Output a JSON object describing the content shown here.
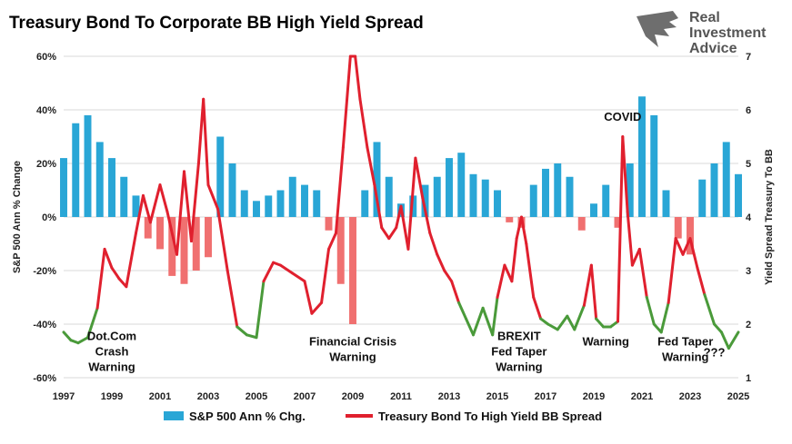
{
  "chart_data": {
    "type": "bar+line",
    "title": "Treasury Bond To Corporate BB High Yield Spread",
    "logo": {
      "lines": [
        "Real",
        "Investment",
        "Advice"
      ]
    },
    "ylabel_left": "S&P 500 Ann % Change",
    "ylabel_right": "Yield Spread Treasury To BB",
    "ylim_left": [
      -60,
      60
    ],
    "ylim_right": [
      1,
      7
    ],
    "yticks_left": [
      "60%",
      "40%",
      "20%",
      "0%",
      "-20%",
      "-40%",
      "-60%"
    ],
    "yticks_right": [
      "7",
      "6",
      "5",
      "4",
      "3",
      "2",
      "1"
    ],
    "xlim": [
      1997,
      2025
    ],
    "xticks": [
      "1997",
      "1999",
      "2001",
      "2003",
      "2005",
      "2007",
      "2009",
      "2011",
      "2013",
      "2015",
      "2017",
      "2019",
      "2021",
      "2023",
      "2025"
    ],
    "grid": "horizontal",
    "legend_position": "bottom",
    "colors": {
      "bars_pos": "#29a6d6",
      "bars_neg": "#f07070",
      "line_high": "#e0202e",
      "line_low": "#4a9a3a",
      "grid": "#d9d9d9"
    },
    "series": [
      {
        "name": "S&P 500 Ann % Chg.",
        "kind": "bar",
        "x": [
          1997.0,
          1997.5,
          1998.0,
          1998.5,
          1999.0,
          1999.5,
          2000.0,
          2000.5,
          2001.0,
          2001.5,
          2002.0,
          2002.5,
          2003.0,
          2003.5,
          2004.0,
          2004.5,
          2005.0,
          2005.5,
          2006.0,
          2006.5,
          2007.0,
          2007.5,
          2008.0,
          2008.5,
          2009.0,
          2009.5,
          2010.0,
          2010.5,
          2011.0,
          2011.5,
          2012.0,
          2012.5,
          2013.0,
          2013.5,
          2014.0,
          2014.5,
          2015.0,
          2015.5,
          2016.0,
          2016.5,
          2017.0,
          2017.5,
          2018.0,
          2018.5,
          2019.0,
          2019.5,
          2020.0,
          2020.5,
          2021.0,
          2021.5,
          2022.0,
          2022.5,
          2023.0,
          2023.5,
          2024.0,
          2024.5,
          2025.0
        ],
        "values": [
          22,
          35,
          38,
          28,
          22,
          15,
          8,
          -8,
          -12,
          -22,
          -25,
          -20,
          -15,
          30,
          20,
          10,
          6,
          8,
          10,
          15,
          12,
          10,
          -5,
          -25,
          -40,
          10,
          28,
          15,
          5,
          8,
          12,
          15,
          22,
          24,
          16,
          14,
          10,
          -2,
          -4,
          12,
          18,
          20,
          15,
          -5,
          5,
          12,
          -4,
          20,
          45,
          38,
          10,
          -8,
          -14,
          14,
          20,
          28,
          16
        ]
      },
      {
        "name": "Treasury Bond To High Yield BB Spread",
        "kind": "line",
        "x": [
          1997.0,
          1997.3,
          1997.6,
          1998.0,
          1998.4,
          1998.7,
          1999.0,
          1999.3,
          1999.6,
          2000.0,
          2000.3,
          2000.6,
          2001.0,
          2001.3,
          2001.7,
          2002.0,
          2002.3,
          2002.6,
          2002.8,
          2003.0,
          2003.4,
          2003.8,
          2004.2,
          2004.6,
          2005.0,
          2005.3,
          2005.7,
          2006.0,
          2006.5,
          2007.0,
          2007.3,
          2007.7,
          2008.0,
          2008.3,
          2008.6,
          2008.9,
          2009.1,
          2009.3,
          2009.6,
          2009.9,
          2010.2,
          2010.5,
          2010.8,
          2011.0,
          2011.3,
          2011.6,
          2011.9,
          2012.2,
          2012.5,
          2012.8,
          2013.1,
          2013.4,
          2013.7,
          2014.0,
          2014.4,
          2014.8,
          2015.0,
          2015.3,
          2015.6,
          2015.8,
          2016.0,
          2016.2,
          2016.5,
          2016.8,
          2017.1,
          2017.5,
          2017.9,
          2018.2,
          2018.6,
          2018.9,
          2019.1,
          2019.4,
          2019.7,
          2020.0,
          2020.2,
          2020.4,
          2020.6,
          2020.9,
          2021.2,
          2021.5,
          2021.8,
          2022.1,
          2022.4,
          2022.7,
          2023.0,
          2023.3,
          2023.6,
          2024.0,
          2024.3,
          2024.6,
          2025.0
        ],
        "values": [
          1.85,
          1.7,
          1.65,
          1.75,
          2.3,
          3.4,
          3.05,
          2.85,
          2.7,
          3.7,
          4.4,
          3.9,
          4.6,
          4.1,
          3.3,
          4.85,
          3.55,
          5.0,
          6.2,
          4.6,
          4.15,
          3.0,
          1.95,
          1.8,
          1.75,
          2.8,
          3.15,
          3.1,
          2.95,
          2.8,
          2.2,
          2.4,
          3.4,
          3.7,
          5.3,
          7.2,
          7.3,
          6.2,
          5.3,
          4.6,
          3.8,
          3.6,
          3.8,
          4.2,
          3.4,
          5.1,
          4.35,
          3.7,
          3.3,
          3.0,
          2.8,
          2.4,
          2.1,
          1.8,
          2.3,
          1.8,
          2.5,
          3.1,
          2.8,
          3.6,
          4.0,
          3.5,
          2.5,
          2.1,
          2.0,
          1.9,
          2.15,
          1.9,
          2.35,
          3.1,
          2.1,
          1.95,
          1.95,
          2.05,
          5.5,
          4.1,
          3.1,
          3.4,
          2.5,
          2.0,
          1.85,
          2.4,
          3.6,
          3.3,
          3.6,
          3.05,
          2.55,
          2.0,
          1.85,
          1.55,
          1.85
        ]
      }
    ],
    "annotations": [
      {
        "lines": [
          "Dot.Com",
          "Crash",
          "Warning"
        ],
        "x": 1999.0,
        "y": -46
      },
      {
        "lines": [
          "Financial Crisis",
          "Warning"
        ],
        "x": 2009.0,
        "y": -48
      },
      {
        "lines": [
          "BREXIT",
          "Fed Taper",
          "Warning"
        ],
        "x": 2015.9,
        "y": -46
      },
      {
        "lines": [
          "Warning"
        ],
        "x": 2019.5,
        "y": -48
      },
      {
        "lines": [
          "COVID"
        ],
        "x": 2020.2,
        "y": 36
      },
      {
        "lines": [
          "Fed Taper",
          "Warning"
        ],
        "x": 2022.8,
        "y": -48
      },
      {
        "lines": [
          "???"
        ],
        "x": 2024.0,
        "y": -52
      }
    ]
  }
}
